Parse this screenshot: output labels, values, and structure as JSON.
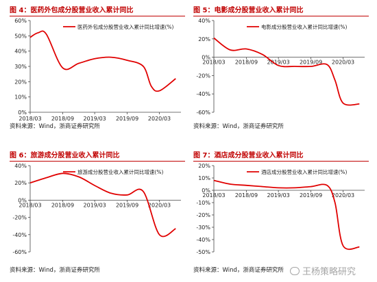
{
  "panels": [
    {
      "title": "图 4：医药外包成分股营业收入累计同比",
      "source": "资料来源：Wind，浙商证券研究所",
      "chart_data": {
        "type": "line",
        "series": [
          {
            "name": "医药外包成分股营业收入累计同比增速(%)",
            "color": "#e00000",
            "x": [
              "2018-03-01",
              "2018-04-15",
              "2018-06-01",
              "2018-09-01",
              "2018-12-01",
              "2019-03-01",
              "2019-06-01",
              "2019-09-01",
              "2019-12-01",
              "2020-01-15",
              "2020-03-01",
              "2020-06-01"
            ],
            "values": [
              0.49,
              0.52,
              0.51,
              0.29,
              0.32,
              0.35,
              0.36,
              0.34,
              0.3,
              0.17,
              0.14,
              0.22
            ]
          }
        ],
        "xticks": [
          "2018/03",
          "2018/09",
          "2019/03",
          "2019/09",
          "2020/03"
        ],
        "yticks": [
          "0%",
          "10%",
          "20%",
          "30%",
          "40%",
          "50%",
          "60%"
        ],
        "ylim": [
          0,
          0.6
        ],
        "xlim": [
          "2018-03-01",
          "2020-07-01"
        ],
        "x_axis_at": 0,
        "legend": "top-right",
        "grid": false
      }
    },
    {
      "title": "图 5：电影成分股营业收入累计同比",
      "source": "资料来源：Wind，浙商证券研究所",
      "chart_data": {
        "type": "line",
        "series": [
          {
            "name": "电影成分股营业收入累计同比增速(%)",
            "color": "#e00000",
            "x": [
              "2018-03-01",
              "2018-06-01",
              "2018-09-01",
              "2018-12-01",
              "2019-03-01",
              "2019-06-01",
              "2019-09-01",
              "2019-12-01",
              "2020-01-15",
              "2020-03-01",
              "2020-06-01"
            ],
            "values": [
              0.21,
              0.08,
              0.09,
              0.03,
              -0.09,
              -0.1,
              -0.1,
              -0.08,
              -0.25,
              -0.5,
              -0.51
            ]
          }
        ],
        "xticks": [
          "2018/03",
          "2018/09",
          "2019/03",
          "2019/09",
          "2020/03"
        ],
        "yticks": [
          "-60%",
          "-40%",
          "-20%",
          "0%",
          "20%",
          "40%"
        ],
        "ylim": [
          -0.6,
          0.4
        ],
        "xlim": [
          "2018-03-01",
          "2020-07-01"
        ],
        "x_axis_at": 0,
        "legend": "top-right",
        "grid": false
      }
    },
    {
      "title": "图 6：旅游成分股营业收入累计同比",
      "source": "资料来源：Wind，浙商证券研究所",
      "chart_data": {
        "type": "line",
        "series": [
          {
            "name": "旅游成分股营业收入累计同比增速(%)",
            "color": "#e00000",
            "x": [
              "2018-03-01",
              "2018-06-01",
              "2018-09-01",
              "2018-12-01",
              "2019-03-01",
              "2019-06-01",
              "2019-09-01",
              "2019-12-01",
              "2020-03-01",
              "2020-06-01"
            ],
            "values": [
              0.2,
              0.26,
              0.31,
              0.27,
              0.17,
              0.08,
              0.06,
              0.1,
              -0.4,
              -0.33
            ]
          }
        ],
        "xticks": [
          "2018/03",
          "2018/09",
          "2019/03",
          "2019/09",
          "2020/03"
        ],
        "yticks": [
          "-60%",
          "-40%",
          "-20%",
          "0%",
          "20%",
          "40%"
        ],
        "ylim": [
          -0.6,
          0.4
        ],
        "xlim": [
          "2018-03-01",
          "2020-07-01"
        ],
        "x_axis_at": 0,
        "legend": "top-right",
        "grid": false
      }
    },
    {
      "title": "图 7：酒店成分股营业收入累计同比",
      "source": "资料来源：Wind，浙商证券研究所",
      "chart_data": {
        "type": "line",
        "series": [
          {
            "name": "酒店成分股营业收入累计同比增速(%)",
            "color": "#e00000",
            "x": [
              "2018-03-01",
              "2018-06-01",
              "2018-09-01",
              "2018-12-01",
              "2019-03-01",
              "2019-06-01",
              "2019-09-01",
              "2019-12-01",
              "2020-01-15",
              "2020-03-01",
              "2020-06-01"
            ],
            "values": [
              0.08,
              0.05,
              0.04,
              0.03,
              0.02,
              0.02,
              0.03,
              0.04,
              -0.1,
              -0.45,
              -0.46
            ]
          }
        ],
        "xticks": [
          "2018/03",
          "2018/09",
          "2019/03",
          "2019/09",
          "2020/03"
        ],
        "yticks": [
          "-50%",
          "-40%",
          "-30%",
          "-20%",
          "-10%",
          "0%",
          "10%",
          "20%"
        ],
        "ylim": [
          -0.5,
          0.2
        ],
        "xlim": [
          "2018-03-01",
          "2020-07-01"
        ],
        "x_axis_at": 0,
        "legend": "top-right",
        "grid": false
      }
    }
  ],
  "watermark": "王杨策略研究",
  "watermark_icon": "wechat-icon"
}
